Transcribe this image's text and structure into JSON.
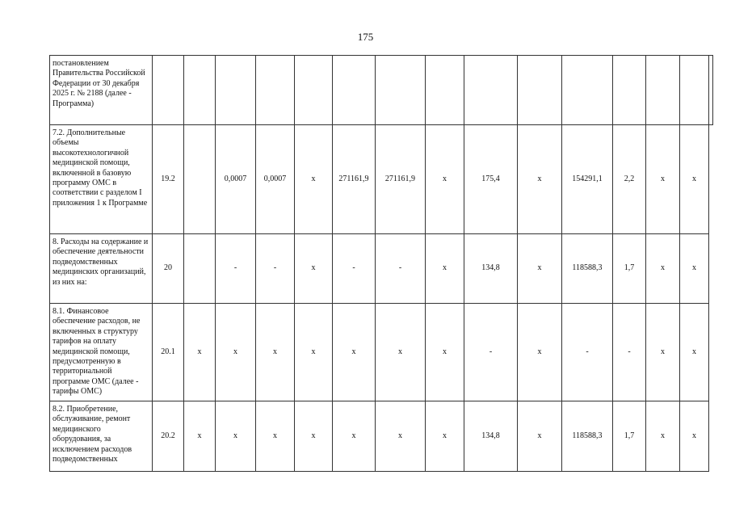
{
  "page_number": "175",
  "rows": [
    {
      "desc": "постановлением Правительства Российской Федерации от 30 декабря 2025 г. № 2188 (далее - Программа)",
      "cells": [
        "",
        "",
        "",
        "",
        "",
        "",
        "",
        "",
        "",
        "",
        "",
        "",
        "",
        "",
        ""
      ]
    },
    {
      "desc": "7.2. Дополнительные объемы высокотехнологичной медицинской помощи, включенной в базовую программу ОМС в соответствии с разделом I приложения 1 к Программе",
      "cells": [
        "19.2",
        "",
        "0,0007",
        "0,0007",
        "х",
        "271161,9",
        "271161,9",
        "х",
        "175,4",
        "х",
        "154291,1",
        "2,2",
        "х",
        "х"
      ]
    },
    {
      "desc": "8. Расходы на содержание и обеспечение деятельности подведомственных медицинских организаций, из них на:",
      "cells": [
        "20",
        "",
        "-",
        "-",
        "х",
        "-",
        "-",
        "х",
        "134,8",
        "х",
        "118588,3",
        "1,7",
        "х",
        "х"
      ]
    },
    {
      "desc": "8.1. Финансовое обеспечение расходов, не включенных в структуру тарифов на оплату медицинской помощи, предусмотренную в территориальной программе ОМС (далее - тарифы ОМС)",
      "cells": [
        "20.1",
        "х",
        "х",
        "х",
        "х",
        "х",
        "х",
        "х",
        "-",
        "х",
        "-",
        "-",
        "х",
        "х"
      ]
    },
    {
      "desc": "8.2. Приобретение, обслуживание, ремонт медицинского оборудования, за исключением расходов подведомственных",
      "cells": [
        "20.2",
        "х",
        "х",
        "х",
        "х",
        "х",
        "х",
        "х",
        "134,8",
        "х",
        "118588,3",
        "1,7",
        "х",
        "х"
      ]
    }
  ]
}
